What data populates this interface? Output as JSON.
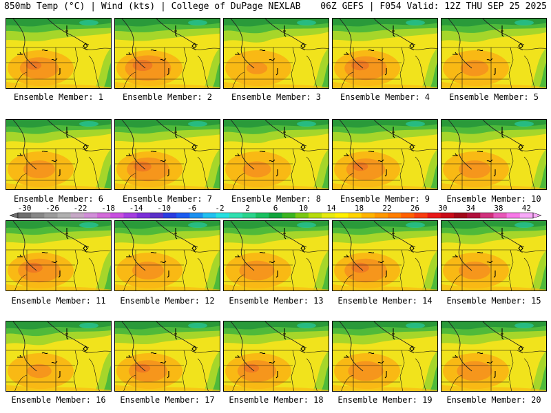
{
  "header": {
    "left": "850mb Temp (°C) | Wind (kts) | College of DuPage NEXLAB",
    "right": "06Z GEFS | F054 Valid: 12Z THU SEP 25 2025"
  },
  "caption_prefix": "Ensemble Member: ",
  "members": [
    {
      "id": 1,
      "label": "Ensemble Member: 1",
      "hot": 0.7
    },
    {
      "id": 2,
      "label": "Ensemble Member: 2",
      "hot": 0.9
    },
    {
      "id": 3,
      "label": "Ensemble Member: 3",
      "hot": 0.2
    },
    {
      "id": 4,
      "label": "Ensemble Member: 4",
      "hot": 0.8
    },
    {
      "id": 5,
      "label": "Ensemble Member: 5",
      "hot": 0.4
    },
    {
      "id": 6,
      "label": "Ensemble Member: 6",
      "hot": 0.5
    },
    {
      "id": 7,
      "label": "Ensemble Member: 7",
      "hot": 0.8
    },
    {
      "id": 8,
      "label": "Ensemble Member: 8",
      "hot": 0.4
    },
    {
      "id": 9,
      "label": "Ensemble Member: 9",
      "hot": 0.7
    },
    {
      "id": 10,
      "label": "Ensemble Member: 10",
      "hot": 0.5
    },
    {
      "id": 11,
      "label": "Ensemble Member: 11",
      "hot": 0.8
    },
    {
      "id": 12,
      "label": "Ensemble Member: 12",
      "hot": 0.5
    },
    {
      "id": 13,
      "label": "Ensemble Member: 13",
      "hot": 0.6
    },
    {
      "id": 14,
      "label": "Ensemble Member: 14",
      "hot": 0.8
    },
    {
      "id": 15,
      "label": "Ensemble Member: 15",
      "hot": 0.5
    },
    {
      "id": 16,
      "label": "Ensemble Member: 16",
      "hot": 0.3
    },
    {
      "id": 17,
      "label": "Ensemble Member: 17",
      "hot": 0.7
    },
    {
      "id": 18,
      "label": "Ensemble Member: 18",
      "hot": 0.7
    },
    {
      "id": 19,
      "label": "Ensemble Member: 19",
      "hot": 0.6
    },
    {
      "id": 20,
      "label": "Ensemble Member: 20",
      "hot": 0.6
    }
  ],
  "colorbar": {
    "min": -30,
    "max": 42,
    "step": 2,
    "tick_labels": [
      "-30",
      "-26",
      "-22",
      "-18",
      "-14",
      "-10",
      "-6",
      "-2",
      "2",
      "6",
      "10",
      "14",
      "18",
      "22",
      "26",
      "30",
      "34",
      "38",
      "42"
    ],
    "colors": [
      "#6e6e6e",
      "#878787",
      "#9b9b9b",
      "#b0b0b0",
      "#c6a8c6",
      "#d18fd8",
      "#d36bd9",
      "#c84fe0",
      "#a43ee0",
      "#7c2fd8",
      "#5a30c8",
      "#2a3ce0",
      "#1b5cf0",
      "#1a90f0",
      "#20c0f0",
      "#26e0e0",
      "#30e0b0",
      "#2ad48c",
      "#18c060",
      "#10a43c",
      "#3ab420",
      "#7ac812",
      "#b6dc0c",
      "#e6ea10",
      "#fff000",
      "#ffd400",
      "#ffb400",
      "#ff9800",
      "#ff7e00",
      "#ff6000",
      "#f83c10",
      "#e81818",
      "#c80c18",
      "#a00818",
      "#b0103c",
      "#d0307c",
      "#e858b8",
      "#f878e8",
      "#f8a8f8"
    ]
  },
  "map_palette": {
    "cold": "#2a9a3a",
    "cool": "#4fba3a",
    "mild": "#a6d62a",
    "warm": "#f1e31c",
    "warmer": "#f9b914",
    "hot": "#f6961c",
    "hotter": "#ef7a22",
    "teal": "#27c9a0"
  }
}
